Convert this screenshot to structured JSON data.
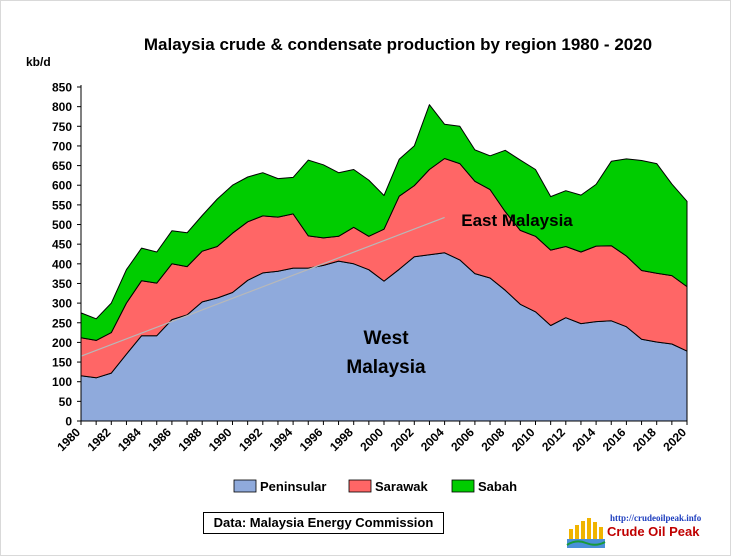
{
  "chart_data": {
    "type": "area",
    "stacked": true,
    "title": "Malaysia  crude & condensate production  by region 1980 - 2020",
    "ylabel": "kb/d",
    "xlabel": "",
    "ylim": [
      0,
      850
    ],
    "yticks": [
      0,
      50,
      100,
      150,
      200,
      250,
      300,
      350,
      400,
      450,
      500,
      550,
      600,
      650,
      700,
      750,
      800,
      850
    ],
    "xlim": [
      1980,
      2020
    ],
    "xticks": [
      1980,
      1982,
      1984,
      1986,
      1988,
      1990,
      1992,
      1994,
      1996,
      1998,
      2000,
      2002,
      2004,
      2006,
      2008,
      2010,
      2012,
      2014,
      2016,
      2018,
      2020
    ],
    "grid": false,
    "legend": "bottom",
    "x": [
      1980,
      1981,
      1982,
      1983,
      1984,
      1985,
      1986,
      1987,
      1988,
      1989,
      1990,
      1991,
      1992,
      1993,
      1994,
      1995,
      1996,
      1997,
      1998,
      1999,
      2000,
      2001,
      2002,
      2003,
      2004,
      2005,
      2006,
      2007,
      2008,
      2009,
      2010,
      2011,
      2012,
      2013,
      2014,
      2015,
      2016,
      2017,
      2018,
      2019,
      2020
    ],
    "series": [
      {
        "name": "Peninsular",
        "color": "#8faadc",
        "values": [
          115,
          110,
          122,
          170,
          217,
          217,
          258,
          270,
          303,
          313,
          327,
          358,
          377,
          381,
          389,
          389,
          396,
          407,
          400,
          385,
          356,
          386,
          418,
          423,
          428,
          410,
          375,
          364,
          333,
          297,
          278,
          243,
          263,
          248,
          253,
          255,
          240,
          208,
          201,
          196,
          178
        ]
      },
      {
        "name": "Sarawak",
        "color": "#ff6666",
        "values": [
          97,
          95,
          103,
          130,
          140,
          134,
          142,
          123,
          129,
          131,
          151,
          149,
          145,
          138,
          138,
          82,
          70,
          63,
          93,
          85,
          132,
          186,
          181,
          217,
          240,
          245,
          235,
          225,
          200,
          188,
          192,
          192,
          181,
          182,
          192,
          191,
          180,
          175,
          175,
          174,
          164
        ]
      },
      {
        "name": "Sabah",
        "color": "#00cc00",
        "values": [
          63,
          55,
          75,
          85,
          83,
          79,
          84,
          86,
          91,
          121,
          122,
          114,
          110,
          98,
          93,
          193,
          186,
          162,
          147,
          143,
          86,
          94,
          101,
          165,
          87,
          95,
          80,
          86,
          156,
          179,
          170,
          136,
          142,
          145,
          157,
          215,
          247,
          280,
          279,
          233,
          217
        ]
      }
    ],
    "annotations": [
      {
        "text": "East Malaysia"
      },
      {
        "text": "West"
      },
      {
        "text": "Malaysia"
      }
    ]
  },
  "source_note": "Data: Malaysia Energy Commission",
  "logo": {
    "url": "http://crudeoilpeak.info",
    "name": "Crude Oil Peak"
  }
}
